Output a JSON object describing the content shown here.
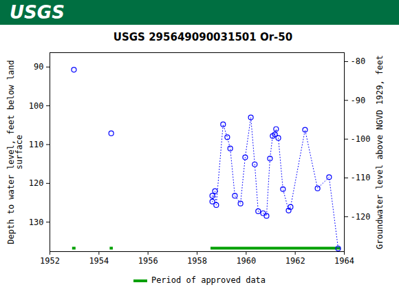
{
  "header": {
    "logo_text": "USGS"
  },
  "chart_data": {
    "type": "scatter",
    "title": "USGS 295649090031501 Or-50",
    "y_label": "Depth to water level, feet below land\nsurface",
    "y2_label": "Groundwater level above NGVD 1929, feet",
    "x": [
      1952.98,
      1952.98,
      1954.5,
      1954.5,
      1958.62,
      1958.62,
      1958.73,
      1958.78,
      1959.06,
      1959.23,
      1959.35,
      1959.54,
      1959.77,
      1959.96,
      1960.19,
      1960.35,
      1960.49,
      1960.69,
      1960.83,
      1960.97,
      1961.08,
      1961.17,
      1961.22,
      1961.31,
      1961.5,
      1961.73,
      1961.81,
      1962.4,
      1962.91,
      1963.38,
      1963.75
    ],
    "values": [
      90.7,
      null,
      107.1,
      null,
      123.2,
      124.7,
      122.0,
      125.6,
      104.8,
      108.1,
      111.0,
      123.2,
      125.2,
      113.3,
      103.0,
      115.1,
      127.2,
      127.7,
      128.4,
      113.6,
      107.8,
      107.4,
      106.0,
      108.3,
      121.5,
      127.0,
      126.1,
      106.2,
      121.3,
      118.4,
      136.8
    ],
    "color": "#0000ff",
    "marker": "circle",
    "line_style": "dotted",
    "xlim": [
      1952,
      1964
    ],
    "xticks": [
      1952,
      1954,
      1956,
      1958,
      1960,
      1962,
      1964
    ],
    "ylim": [
      86.3,
      137.6
    ],
    "yticks": [
      90,
      100,
      110,
      120,
      130
    ],
    "y2lim": [
      -77.7,
      -129
    ],
    "y2ticks": [
      -80,
      -90,
      -100,
      -110,
      -120
    ],
    "approved_periods": {
      "name": "Period of approved data",
      "color": "#00a000",
      "values": [
        [
          1952.92,
          1953.06
        ],
        [
          1954.45,
          1954.58
        ],
        [
          1958.56,
          1963.86
        ]
      ]
    }
  }
}
